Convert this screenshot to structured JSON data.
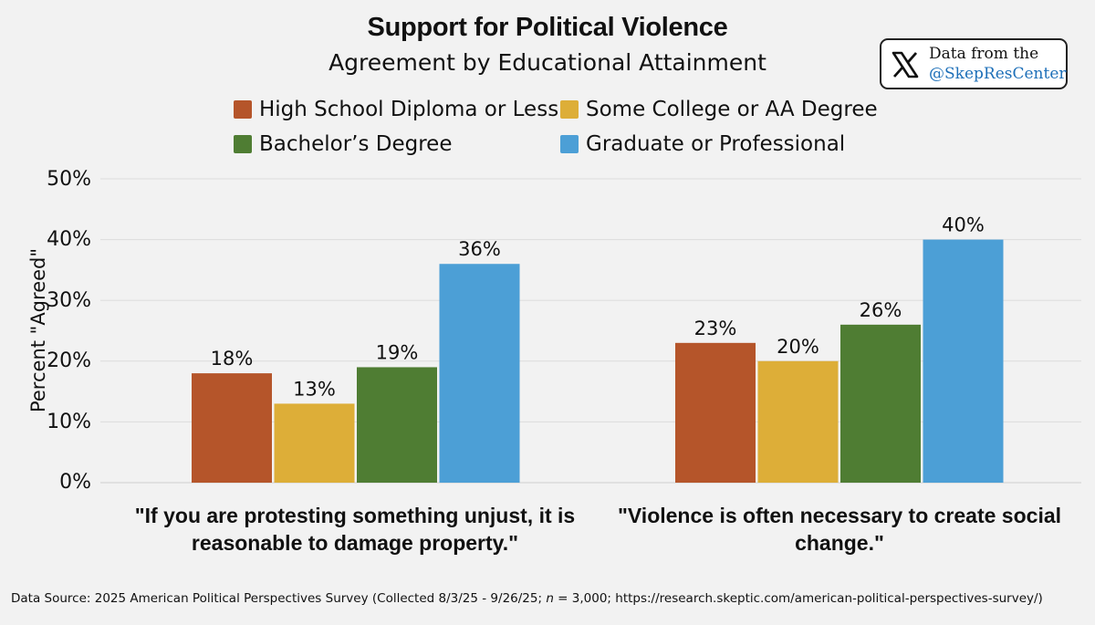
{
  "chart_data": {
    "type": "bar",
    "title": "Support for Political Violence",
    "subtitle": "Agreement by Educational Attainment",
    "ylabel": "Percent \"Agreed\"",
    "ylim": [
      0,
      50
    ],
    "yticks": [
      "0%",
      "10%",
      "20%",
      "30%",
      "40%",
      "50%"
    ],
    "categories": [
      "\"If you are protesting something unjust, it is reasonable to damage property.\"",
      "\"Violence is often necessary to create social change.\""
    ],
    "category_lines": [
      [
        "\"If you are protesting something unjust, it is",
        "reasonable to damage property.\""
      ],
      [
        "\"Violence is often necessary to create social",
        "change.\""
      ]
    ],
    "series": [
      {
        "name": "High School Diploma or Less",
        "color": "#b5552a",
        "values": [
          18,
          23
        ],
        "labels": [
          "18%",
          "23%"
        ]
      },
      {
        "name": "Some College or AA Degree",
        "color": "#ddae38",
        "values": [
          13,
          20
        ],
        "labels": [
          "13%",
          "20%"
        ]
      },
      {
        "name": "Bachelor’s Degree",
        "color": "#4f7d33",
        "values": [
          19,
          26
        ],
        "labels": [
          "19%",
          "26%"
        ]
      },
      {
        "name": "Graduate or Professional",
        "color": "#4c9fd6",
        "values": [
          36,
          40
        ],
        "labels": [
          "36%",
          "40%"
        ]
      }
    ],
    "grid": true,
    "legend": "top-center"
  },
  "badge": {
    "line1": "Data from the",
    "line2": "@SkepResCenter",
    "icon": "x-logo-icon"
  },
  "footer": {
    "prefix": "Data Source: 2025 American Political Perspectives Survey (Collected 8/3/25 - 9/26/25; ",
    "n_var": "n",
    "suffix": " = 3,000; https://research.skeptic.com/american-political-perspectives-survey/)"
  }
}
